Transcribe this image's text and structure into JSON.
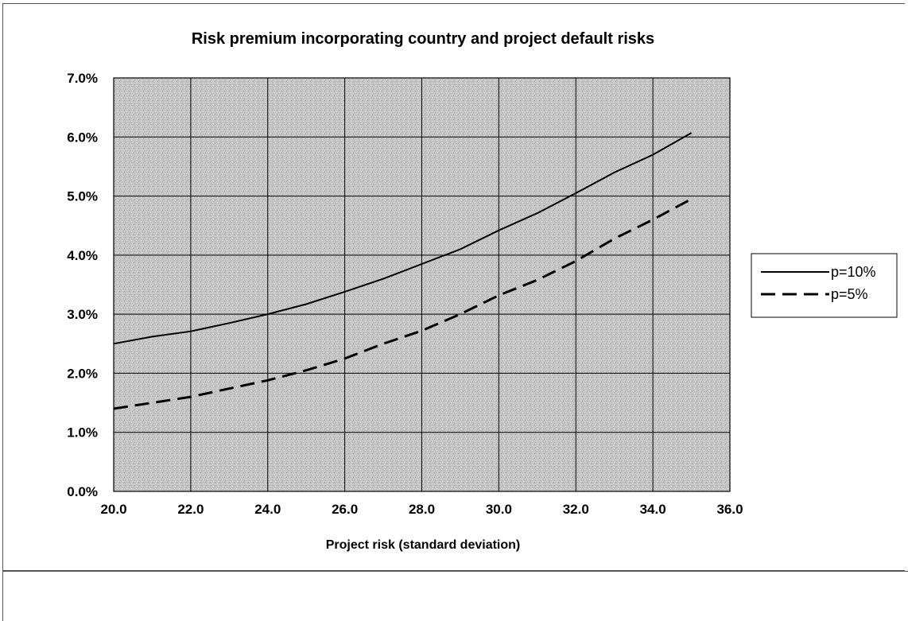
{
  "chart_data": {
    "type": "line",
    "title": "Risk premium incorporating country and project default risks",
    "xlabel": "Project risk (standard deviation)",
    "ylabel": "",
    "xlim": [
      20.0,
      36.0
    ],
    "ylim": [
      0.0,
      0.07
    ],
    "x_ticks": [
      "20.0",
      "22.0",
      "24.0",
      "26.0",
      "28.0",
      "30.0",
      "32.0",
      "34.0",
      "36.0"
    ],
    "y_ticks": [
      "0.0%",
      "1.0%",
      "2.0%",
      "3.0%",
      "4.0%",
      "5.0%",
      "6.0%",
      "7.0%"
    ],
    "grid": true,
    "legend_position": "right",
    "plot_background": "#c8c8c8",
    "series": [
      {
        "name": "p=10%",
        "style": "solid",
        "color": "#000000",
        "x": [
          20,
          21,
          22,
          23,
          24,
          25,
          26,
          27,
          28,
          29,
          30,
          31,
          32,
          33,
          34,
          35
        ],
        "y": [
          0.025,
          0.0262,
          0.0271,
          0.0285,
          0.03,
          0.0317,
          0.0338,
          0.036,
          0.0385,
          0.041,
          0.0442,
          0.0471,
          0.0505,
          0.054,
          0.057,
          0.0607
        ]
      },
      {
        "name": "p=5%",
        "style": "dashed",
        "color": "#000000",
        "x": [
          20,
          21,
          22,
          23,
          24,
          25,
          26,
          27,
          28,
          29,
          30,
          31,
          32,
          33,
          34,
          35
        ],
        "y": [
          0.014,
          0.015,
          0.016,
          0.0174,
          0.0188,
          0.0205,
          0.0225,
          0.025,
          0.0272,
          0.03,
          0.0332,
          0.0358,
          0.039,
          0.0428,
          0.046,
          0.0495
        ]
      }
    ]
  }
}
